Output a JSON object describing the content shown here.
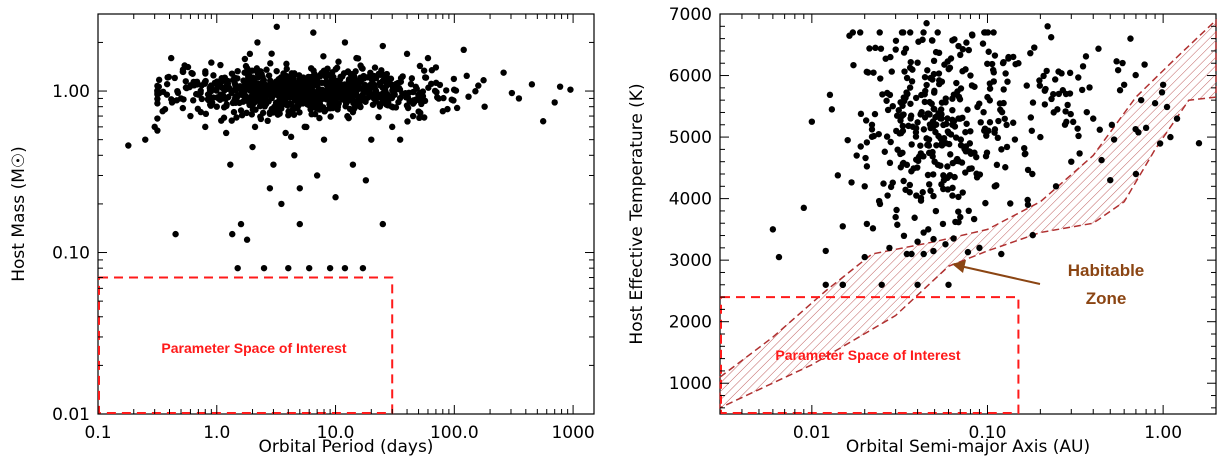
{
  "chart_data": [
    {
      "type": "scatter",
      "xlabel": "Orbital Period (days)",
      "ylabel": "Host Mass (M☉)",
      "xscale": "log",
      "yscale": "log",
      "xlim": [
        0.1,
        1500
      ],
      "ylim": [
        0.01,
        3
      ],
      "xticks": [
        {
          "value": 0.1,
          "label": "0.1"
        },
        {
          "value": 1,
          "label": "1.0"
        },
        {
          "value": 10,
          "label": "10.0"
        },
        {
          "value": 100,
          "label": "100.0"
        },
        {
          "value": 1000,
          "label": "1000"
        }
      ],
      "yticks": [
        {
          "value": 0.01,
          "label": "0.01"
        },
        {
          "value": 0.1,
          "label": "0.10"
        },
        {
          "value": 1,
          "label": "1.00"
        }
      ],
      "region": {
        "label": "Parameter Space of Interest",
        "x": [
          0.1,
          30
        ],
        "y": [
          0.01,
          0.07
        ],
        "color": "#ff1a1a"
      },
      "points": [
        [
          0.18,
          0.46
        ],
        [
          0.25,
          0.5
        ],
        [
          0.3,
          0.6
        ],
        [
          0.35,
          0.75
        ],
        [
          0.38,
          0.95
        ],
        [
          0.42,
          0.85
        ],
        [
          0.45,
          0.13
        ],
        [
          0.5,
          0.9
        ],
        [
          0.55,
          1.05
        ],
        [
          0.6,
          0.7
        ],
        [
          0.65,
          1.1
        ],
        [
          0.7,
          0.95
        ],
        [
          0.8,
          0.6
        ],
        [
          0.9,
          1.0
        ],
        [
          1.0,
          0.8
        ],
        [
          1.1,
          1.2
        ],
        [
          1.2,
          0.55
        ],
        [
          1.3,
          0.35
        ],
        [
          1.35,
          0.13
        ],
        [
          1.5,
          0.08
        ],
        [
          1.6,
          0.15
        ],
        [
          1.8,
          0.12
        ],
        [
          2.0,
          0.45
        ],
        [
          2.1,
          0.6
        ],
        [
          2.5,
          0.08
        ],
        [
          2.8,
          0.25
        ],
        [
          3.0,
          0.35
        ],
        [
          3.5,
          0.2
        ],
        [
          4.0,
          0.08
        ],
        [
          4.5,
          0.4
        ],
        [
          5.0,
          0.25
        ],
        [
          5.5,
          0.6
        ],
        [
          6.0,
          0.08
        ],
        [
          7.0,
          0.3
        ],
        [
          8.0,
          0.5
        ],
        [
          9.0,
          0.08
        ],
        [
          10.0,
          0.22
        ],
        [
          12.0,
          0.08
        ],
        [
          14.0,
          0.35
        ],
        [
          17.0,
          0.08
        ],
        [
          18.0,
          0.28
        ],
        [
          20.0,
          0.5
        ],
        [
          25.0,
          0.15
        ],
        [
          30.0,
          0.6
        ],
        [
          45.0,
          0.7
        ],
        [
          60.0,
          1.6
        ],
        [
          80.0,
          0.75
        ],
        [
          120.0,
          1.8
        ],
        [
          180.0,
          0.8
        ],
        [
          260.0,
          1.3
        ],
        [
          350.0,
          0.9
        ],
        [
          450.0,
          1.1
        ],
        [
          560.0,
          0.65
        ],
        [
          700.0,
          0.85
        ],
        [
          950.0,
          1.02
        ],
        [
          2.2,
          2.0
        ],
        [
          3.2,
          2.5
        ],
        [
          6.5,
          2.3
        ],
        [
          12.0,
          2.0
        ],
        [
          25.0,
          1.9
        ],
        [
          40.0,
          1.7
        ],
        [
          1.9,
          1.7
        ],
        [
          15.0,
          1.6
        ],
        [
          0.9,
          1.5
        ],
        [
          35.0,
          0.5
        ],
        [
          70.0,
          1.4
        ],
        [
          5.0,
          0.15
        ],
        [
          3.8,
          0.55
        ]
      ]
    },
    {
      "type": "scatter",
      "xlabel": "Orbital Semi-major Axis (AU)",
      "ylabel": "Host Effective Temperature (K)",
      "xscale": "log",
      "yscale": "linear",
      "xlim": [
        0.003,
        2.0
      ],
      "ylim": [
        500,
        7000
      ],
      "xticks": [
        {
          "value": 0.01,
          "label": "0.01"
        },
        {
          "value": 0.1,
          "label": "0.10"
        },
        {
          "value": 1,
          "label": "1.00"
        }
      ],
      "yticks": [
        {
          "value": 1000,
          "label": "1000"
        },
        {
          "value": 2000,
          "label": "2000"
        },
        {
          "value": 3000,
          "label": "3000"
        },
        {
          "value": 4000,
          "label": "4000"
        },
        {
          "value": 5000,
          "label": "5000"
        },
        {
          "value": 6000,
          "label": "6000"
        },
        {
          "value": 7000,
          "label": "7000"
        }
      ],
      "region": {
        "label": "Parameter Space of Interest",
        "x": [
          0.003,
          0.15
        ],
        "y": [
          500,
          2400
        ],
        "color": "#ff1a1a"
      },
      "habitable_zone": {
        "label_line1": "Habitable",
        "label_line2": "Zone",
        "color": "#b03030",
        "upper": [
          [
            0.003,
            1100
          ],
          [
            0.006,
            1750
          ],
          [
            0.012,
            2500
          ],
          [
            0.022,
            3100
          ],
          [
            0.05,
            3300
          ],
          [
            0.1,
            3500
          ],
          [
            0.2,
            3950
          ],
          [
            0.4,
            4700
          ],
          [
            0.7,
            5650
          ],
          [
            1.2,
            6300
          ],
          [
            2.0,
            6900
          ]
        ],
        "lower": [
          [
            2.0,
            5650
          ],
          [
            1.4,
            5600
          ],
          [
            0.9,
            4800
          ],
          [
            0.6,
            3950
          ],
          [
            0.4,
            3600
          ],
          [
            0.2,
            3450
          ],
          [
            0.1,
            3150
          ],
          [
            0.06,
            2900
          ],
          [
            0.03,
            2100
          ],
          [
            0.01,
            1300
          ],
          [
            0.003,
            600
          ]
        ]
      },
      "points": [
        [
          0.006,
          3500
        ],
        [
          0.0065,
          3050
        ],
        [
          0.009,
          3850
        ],
        [
          0.01,
          5250
        ],
        [
          0.012,
          2600
        ],
        [
          0.012,
          3150
        ],
        [
          0.013,
          5450
        ],
        [
          0.015,
          3550
        ],
        [
          0.015,
          2600
        ],
        [
          0.018,
          4700
        ],
        [
          0.02,
          4200
        ],
        [
          0.02,
          3050
        ],
        [
          0.022,
          5200
        ],
        [
          0.023,
          6450
        ],
        [
          0.025,
          2600
        ],
        [
          0.028,
          6300
        ],
        [
          0.03,
          3700
        ],
        [
          0.035,
          5700
        ],
        [
          0.04,
          2600
        ],
        [
          0.045,
          6850
        ],
        [
          0.05,
          4600
        ],
        [
          0.055,
          5900
        ],
        [
          0.06,
          2600
        ],
        [
          0.065,
          4350
        ],
        [
          0.07,
          5300
        ],
        [
          0.08,
          6000
        ],
        [
          0.09,
          3200
        ],
        [
          0.1,
          5650
        ],
        [
          0.12,
          4800
        ],
        [
          0.15,
          6200
        ],
        [
          0.17,
          3900
        ],
        [
          0.2,
          5000
        ],
        [
          0.22,
          6800
        ],
        [
          0.25,
          5450
        ],
        [
          0.3,
          4600
        ],
        [
          0.35,
          6150
        ],
        [
          0.4,
          5300
        ],
        [
          0.5,
          4300
        ],
        [
          0.6,
          5850
        ],
        [
          0.7,
          4400
        ],
        [
          0.75,
          5600
        ],
        [
          0.8,
          5150
        ],
        [
          0.9,
          5550
        ],
        [
          1.0,
          5850
        ],
        [
          1.1,
          5000
        ],
        [
          1.2,
          5300
        ],
        [
          1.6,
          4900
        ],
        [
          0.04,
          3300
        ],
        [
          0.07,
          3700
        ],
        [
          0.015,
          2600
        ],
        [
          0.016,
          4950
        ],
        [
          0.027,
          4050
        ],
        [
          0.033,
          5100
        ],
        [
          0.046,
          3500
        ],
        [
          0.058,
          4900
        ],
        [
          0.075,
          6100
        ],
        [
          0.11,
          4200
        ],
        [
          0.13,
          5900
        ],
        [
          0.18,
          4400
        ],
        [
          0.28,
          5700
        ]
      ]
    }
  ]
}
